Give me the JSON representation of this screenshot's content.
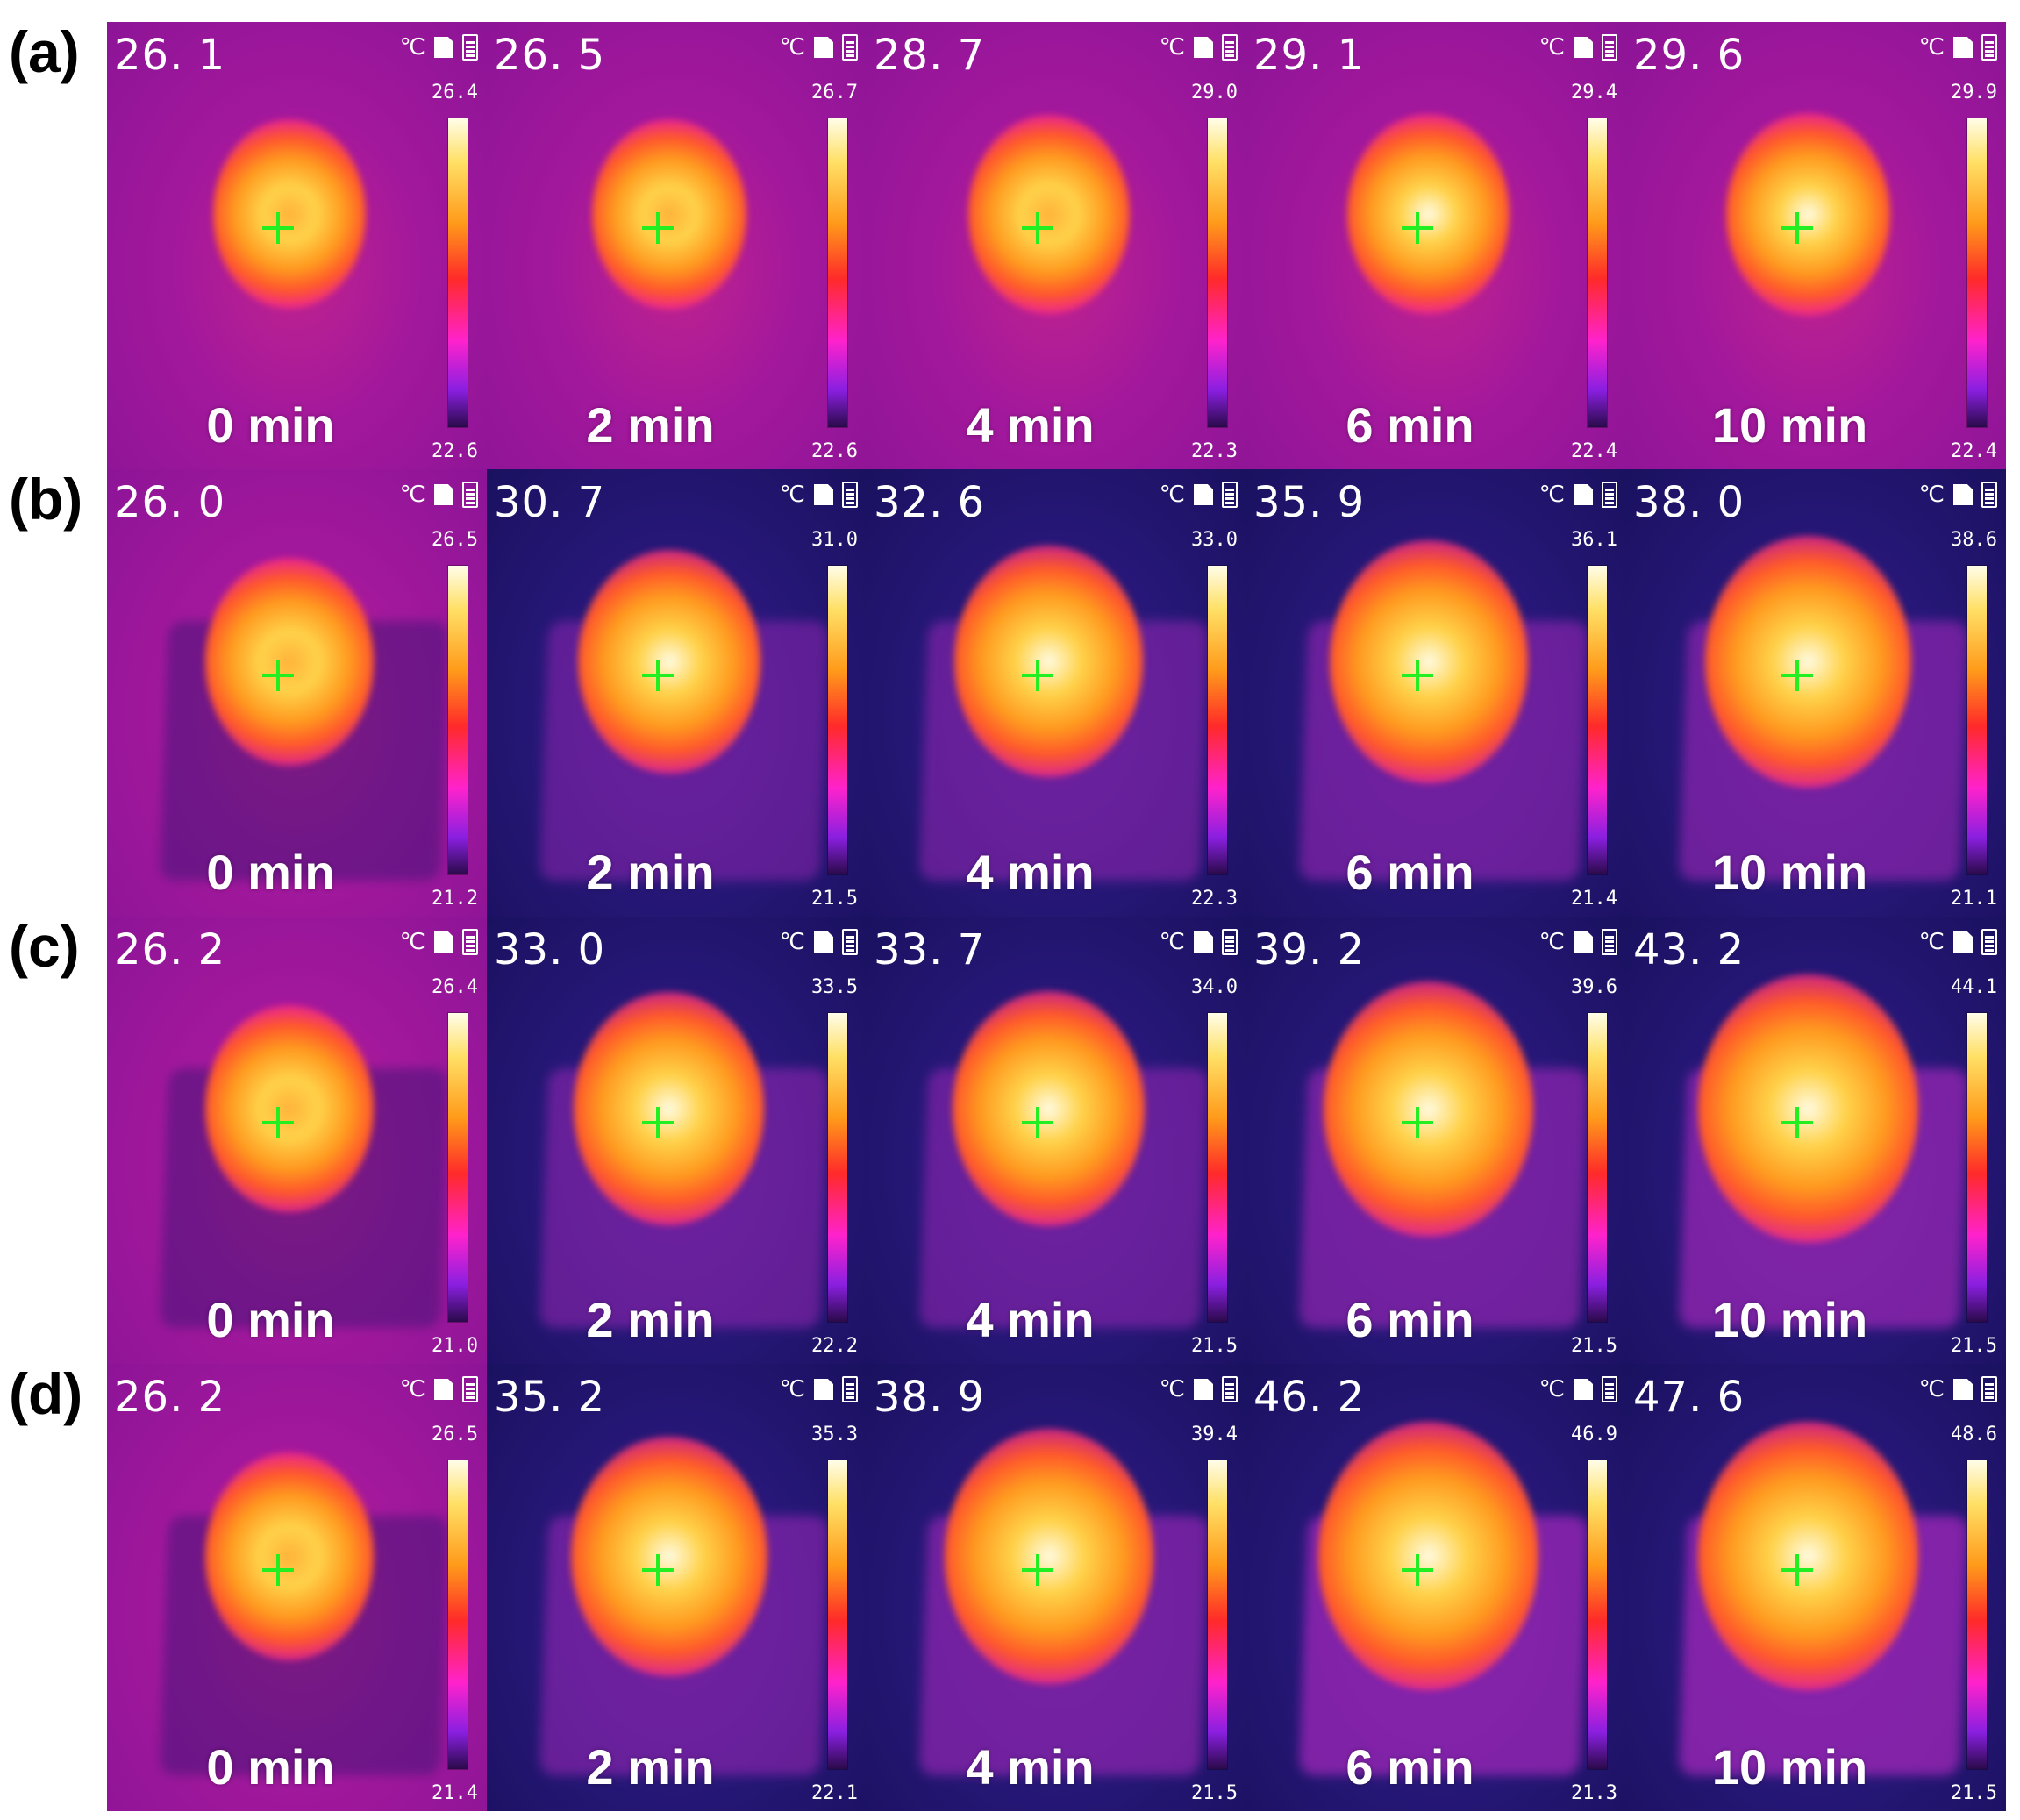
{
  "rows": [
    {
      "label": "(a)",
      "panels": [
        {
          "reading": "26. 1",
          "max": "26.4",
          "min": "22.6",
          "time": "0 min"
        },
        {
          "reading": "26. 5",
          "max": "26.7",
          "min": "22.6",
          "time": "2 min"
        },
        {
          "reading": "28. 7",
          "max": "29.0",
          "min": "22.3",
          "time": "4 min"
        },
        {
          "reading": "29. 1",
          "max": "29.4",
          "min": "22.4",
          "time": "6 min"
        },
        {
          "reading": "29. 6",
          "max": "29.9",
          "min": "22.4",
          "time": "10 min"
        }
      ]
    },
    {
      "label": "(b)",
      "panels": [
        {
          "reading": "26. 0",
          "max": "26.5",
          "min": "21.2",
          "time": "0 min"
        },
        {
          "reading": "30. 7",
          "max": "31.0",
          "min": "21.5",
          "time": "2 min"
        },
        {
          "reading": "32. 6",
          "max": "33.0",
          "min": "22.3",
          "time": "4 min"
        },
        {
          "reading": "35. 9",
          "max": "36.1",
          "min": "21.4",
          "time": "6 min"
        },
        {
          "reading": "38. 0",
          "max": "38.6",
          "min": "21.1",
          "time": "10 min"
        }
      ]
    },
    {
      "label": "(c)",
      "panels": [
        {
          "reading": "26. 2",
          "max": "26.4",
          "min": "21.0",
          "time": "0 min"
        },
        {
          "reading": "33. 0",
          "max": "33.5",
          "min": "22.2",
          "time": "2 min"
        },
        {
          "reading": "33. 7",
          "max": "34.0",
          "min": "21.5",
          "time": "4 min"
        },
        {
          "reading": "39. 2",
          "max": "39.6",
          "min": "21.5",
          "time": "6 min"
        },
        {
          "reading": "43. 2",
          "max": "44.1",
          "min": "21.5",
          "time": "10 min"
        }
      ]
    },
    {
      "label": "(d)",
      "panels": [
        {
          "reading": "26. 2",
          "max": "26.5",
          "min": "21.4",
          "time": "0 min"
        },
        {
          "reading": "35. 2",
          "max": "35.3",
          "min": "22.1",
          "time": "2 min"
        },
        {
          "reading": "38. 9",
          "max": "39.4",
          "min": "21.5",
          "time": "4 min"
        },
        {
          "reading": "46. 2",
          "max": "46.9",
          "min": "21.3",
          "time": "6 min"
        },
        {
          "reading": "47. 6",
          "max": "48.6",
          "min": "21.5",
          "time": "10 min"
        }
      ]
    }
  ],
  "unit_symbol": "℃",
  "icons": {
    "storage": "sd-card-icon",
    "power": "battery-icon",
    "target": "crosshair-icon"
  },
  "colors": {
    "crosshair": "#22ee22",
    "warm_background": "#a0149a",
    "cool_background": "#221470",
    "hot_core": "#fffce0"
  }
}
